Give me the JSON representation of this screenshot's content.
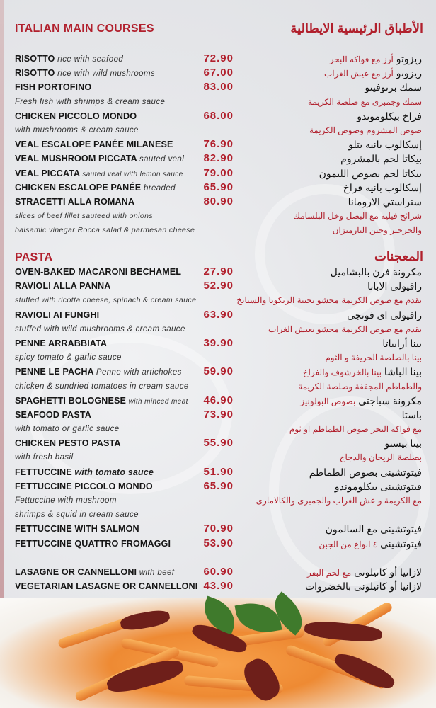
{
  "main_courses": {
    "title_en": "ITALIAN MAIN COURSES",
    "title_ar": "الأطباق الرئيسية الايطالية",
    "rows": [
      {
        "en": "RISOTTO",
        "en_desc": "rice with seafood",
        "price": "72.90",
        "ar": "ريزوتو",
        "ar_red": "أرز مع فواكه البحر"
      },
      {
        "en": "RISOTTO",
        "en_desc": "rice with wild mushrooms",
        "price": "67.00",
        "ar": "ريزوتو",
        "ar_red": "أرز مع عيش الغراب"
      },
      {
        "en": "FISH PORTOFINO",
        "price": "83.00",
        "ar": "سمك برتوفينو"
      },
      {
        "desc": "Fresh fish with shrimps & cream sauce",
        "ar_red": "سمك وجمبرى مع صلصة الكريمة"
      },
      {
        "en": "CHICKEN PICCOLO MONDO",
        "price": "68.00",
        "ar": "فراخ بيكلوموندو"
      },
      {
        "desc": "with mushrooms & cream sauce",
        "ar_red": "صوص المشروم وصوص الكريمة"
      },
      {
        "en": "VEAL ESCALOPE PANÉE MILANESE",
        "price": "76.90",
        "ar": "إسكالوب بانيه بتلو"
      },
      {
        "en": "VEAL MUSHROOM PICCATA",
        "en_desc": "sauted veal",
        "price": "82.90",
        "ar": "بيكاتا لحم بالمشروم"
      },
      {
        "en": "VEAL PICCATA",
        "en_desc_small": "sauted veal with lemon sauce",
        "price": "79.00",
        "ar": "بيكاتا لحم بصوص الليمون"
      },
      {
        "en": "CHICKEN ESCALOPE PANÉE",
        "en_desc": "breaded",
        "price": "65.90",
        "ar": "إسكالوب بانيه فراخ"
      },
      {
        "en": "STRACETTI ALLA ROMANA",
        "price": "80.90",
        "ar": "ستراستي الارومانا"
      },
      {
        "desc_small": "slices of beef fillet sauteed with onions",
        "ar_red": "شرائح فيليه مع البصل وخل البلسامك"
      },
      {
        "desc_small": "balsamic vinegar Rocca salad & parmesan cheese",
        "ar_red": "والجرجير وجبن البارميزان"
      }
    ]
  },
  "pasta": {
    "title_en": "PASTA",
    "title_ar": "المعجنات",
    "rows": [
      {
        "en": "OVEN-BAKED MACARONI BECHAMEL",
        "price": "27.90",
        "ar": "مكرونة فرن بالبشاميل"
      },
      {
        "en": "RAVIOLI ALLA PANNA",
        "price": "52.90",
        "ar": "رافيولى الابانا"
      },
      {
        "desc_small": "stuffed with ricotta cheese, spinach & cream sauce",
        "ar_red": "يقدم مع صوص الكريمة محشو بجبنة الريكوتا والسبانخ"
      },
      {
        "en": "RAVIOLI AI FUNGHI",
        "price": "63.90",
        "ar": "رافيولى اى فونجى"
      },
      {
        "desc": "stuffed with wild mushrooms & cream sauce",
        "ar_red": "يقدم مع صوص الكريمة محشو بعيش الغراب"
      },
      {
        "en": "PENNE ARRABBIATA",
        "price": "39.90",
        "ar": "بينا أرابياتا"
      },
      {
        "desc": "spicy tomato & garlic sauce",
        "ar_red": "بينا بالصلصة الحريفة و الثوم"
      },
      {
        "en": "PENNE LE PACHA",
        "en_desc": "Penne with artichokes",
        "price": "59.90",
        "ar": "بينا الباشا",
        "ar_red": "بينا بالخرشوف والفراخ"
      },
      {
        "desc": "chicken & sundried tomatoes in cream sauce",
        "ar_red": "والطماطم المجففة وصلصة الكريمة"
      },
      {
        "en": "SPAGHETTI BOLOGNESE",
        "en_desc_small": "with minced meat",
        "price": "46.90",
        "ar": "مكرونة سباجتى",
        "ar_red": "بصوص البولونيز"
      },
      {
        "en": "SEAFOOD PASTA",
        "price": "73.90",
        "ar": "باستا"
      },
      {
        "desc": "with tomato or garlic sauce",
        "ar_red": "مع فواكه البحر  صوص الطماطم او ثوم"
      },
      {
        "en": "CHICKEN PESTO PASTA",
        "price": "55.90",
        "ar": "بينا بيستو"
      },
      {
        "desc": "with fresh basil",
        "ar_red": "بصلصة الريحان والدجاج"
      },
      {
        "en": "FETTUCCINE",
        "en_bold_italic": "with tomato sauce",
        "price": "51.90",
        "ar": "فيتوتشينى بصوص الطماطم"
      },
      {
        "en": "FETTUCCINE PICCOLO MONDO",
        "price": "65.90",
        "ar": "فيتوتشينى بيكلوموندو"
      },
      {
        "desc": "Fettuccine with mushroom",
        "ar_red": "مع الكريمة و عش الغراب والجمبرى والكالامارى"
      },
      {
        "desc": " shrimps & squid in cream sauce"
      },
      {
        "en": "FETTUCCINE WITH SALMON",
        "price": "70.90",
        "ar": "فيتوتشينى مع السالمون"
      },
      {
        "en": "FETTUCCINE QUATTRO FROMAGGI",
        "price": "53.90",
        "ar": "فيتوتشينى",
        "ar_red": "٤ انواع من الجبن"
      },
      {},
      {
        "en": "LASAGNE OR CANNELLONI",
        "en_desc": "with beef",
        "price": "60.90",
        "ar": "لازانيا  أو كانيلونى",
        "ar_red": "مع لحم البقر"
      },
      {
        "en": "VEGETARIAN LASAGNE OR CANNELLONI",
        "price": "43.90",
        "ar": "لازانيا أو كانيلونى بالخضروات"
      }
    ]
  },
  "colors": {
    "accent": "#b1202d",
    "background": "#e9eaed",
    "text": "#151515"
  }
}
